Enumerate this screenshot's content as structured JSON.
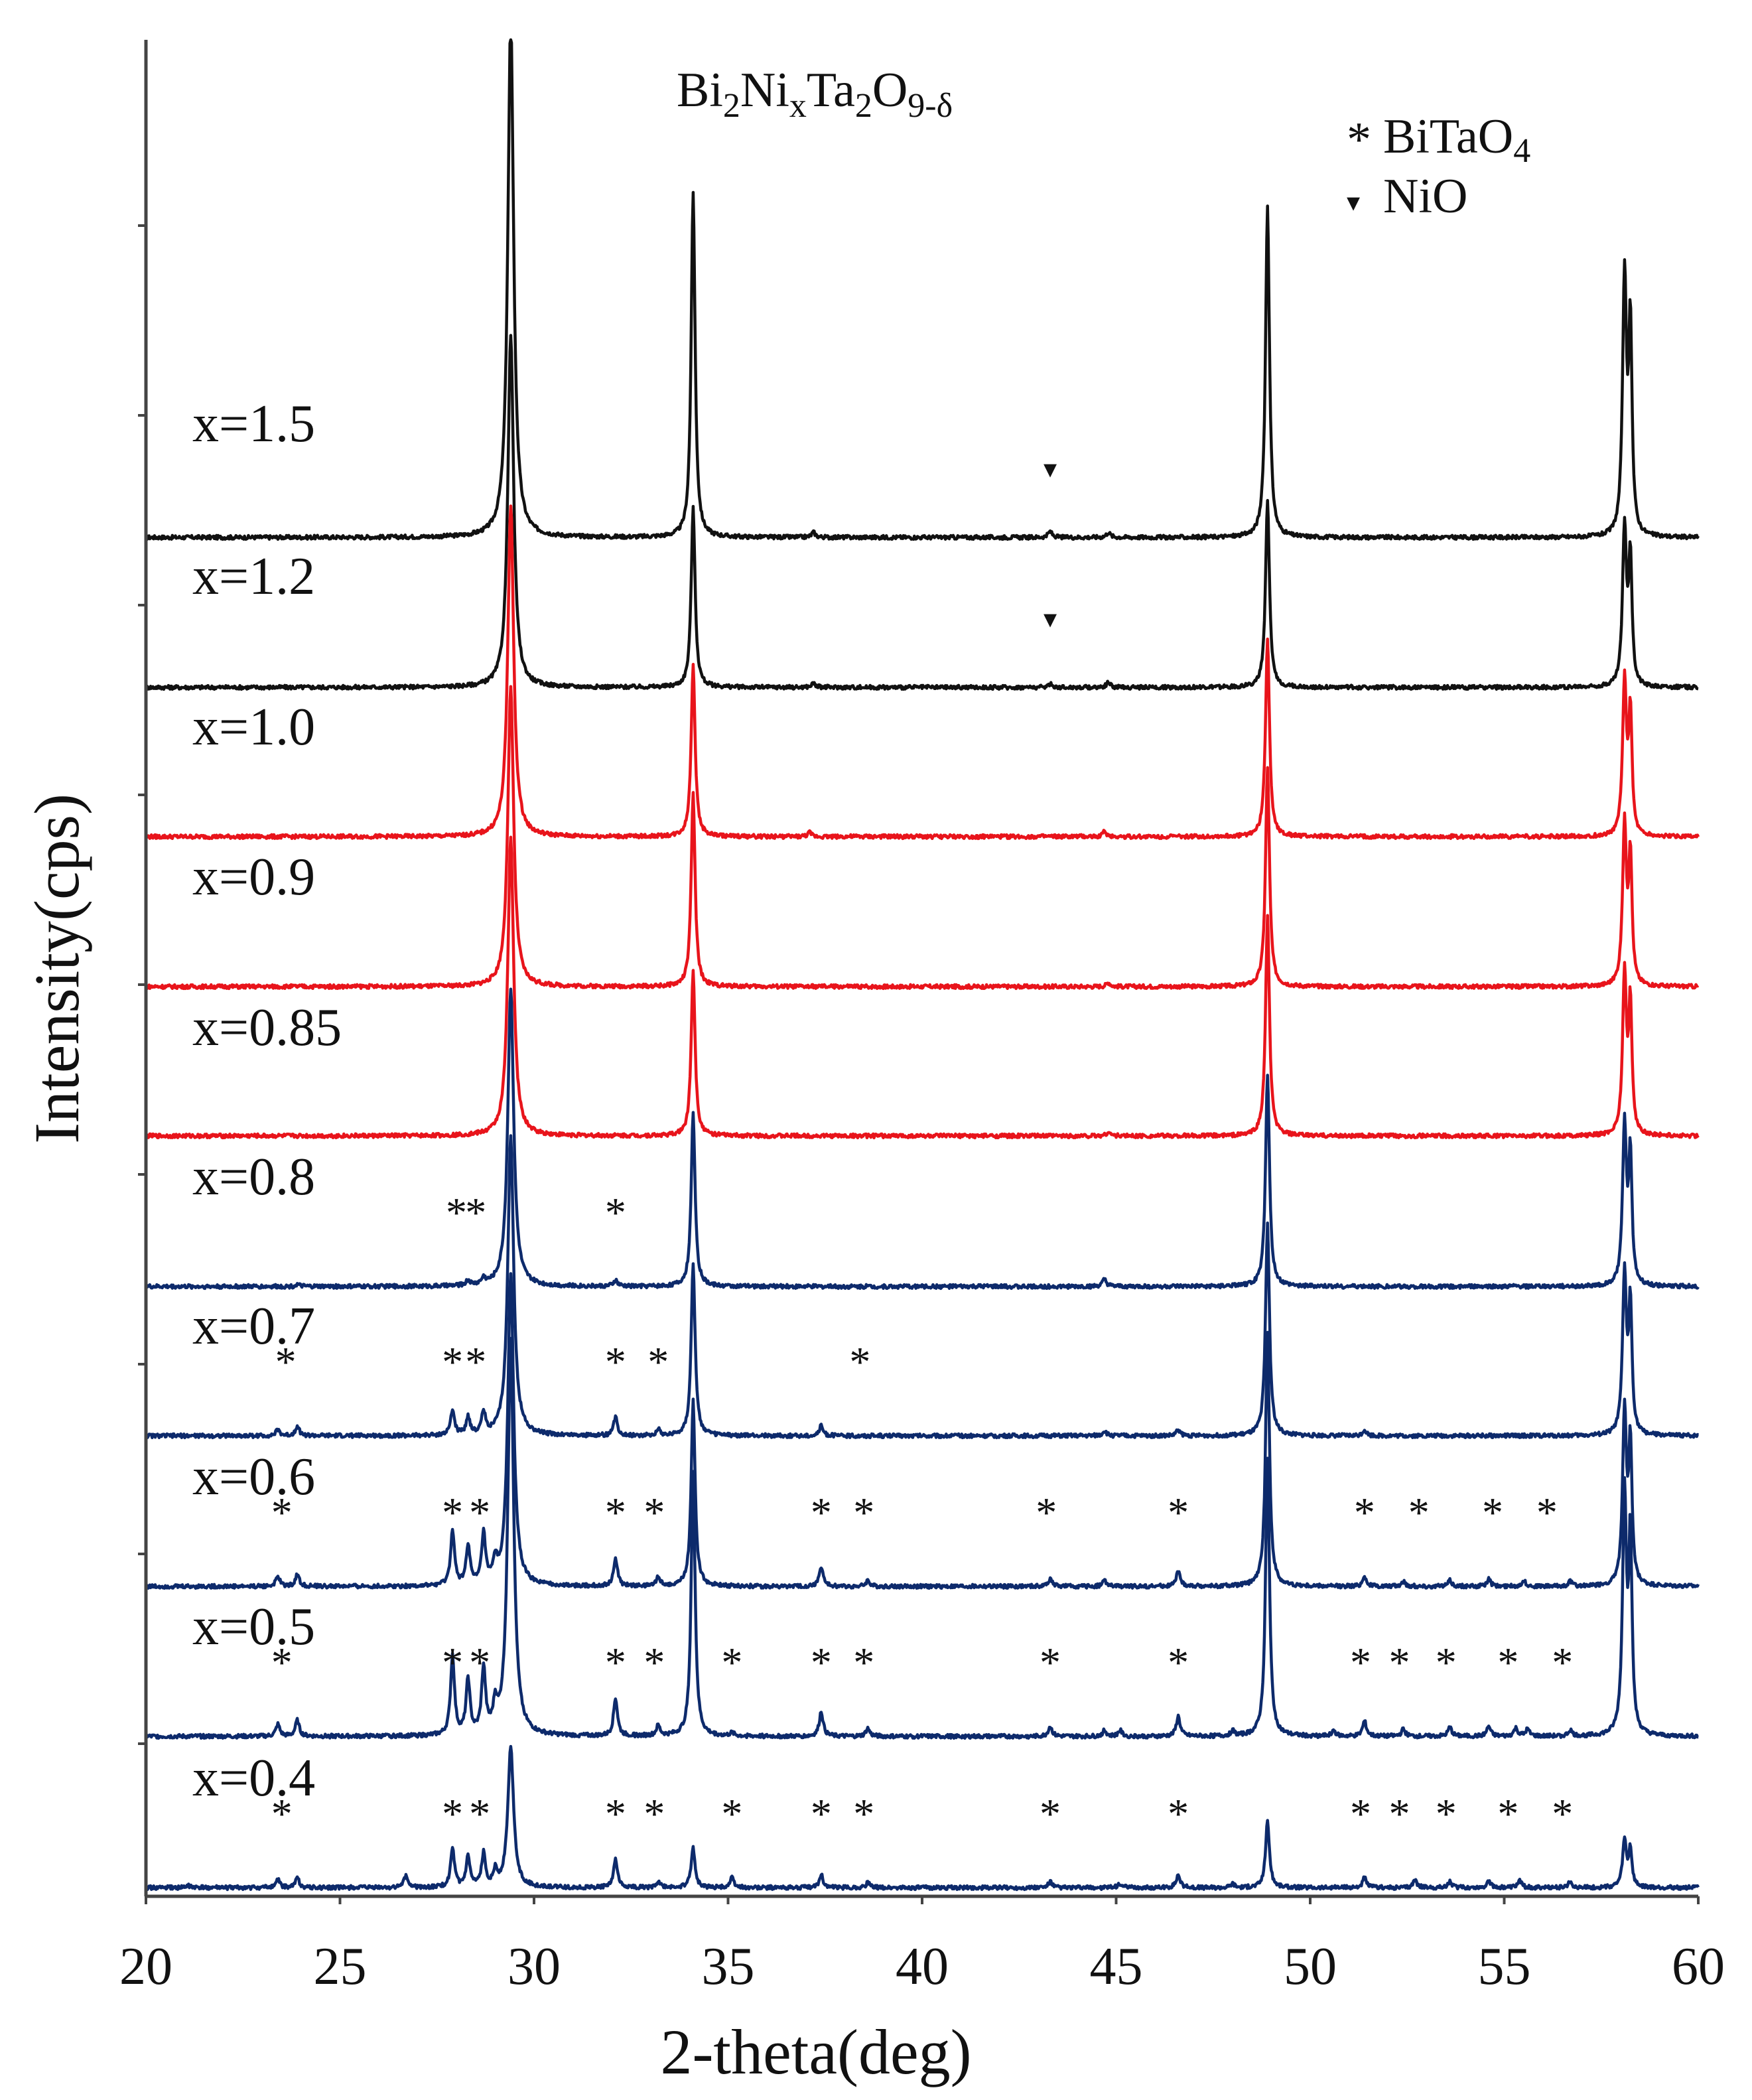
{
  "chart_data": {
    "type": "line",
    "title_parts": {
      "bi": "Bi",
      "bi_sub": "2",
      "ni": "Ni",
      "ni_sub": "x",
      "ta": "Ta",
      "ta_sub": "2",
      "o": "O",
      "o_sub": "9-δ"
    },
    "xlabel": "2-theta(deg)",
    "ylabel": "Intensity(cps)",
    "xlim": [
      20,
      60
    ],
    "x_ticks": [
      "20",
      "25",
      "30",
      "35",
      "40",
      "45",
      "50",
      "55",
      "60"
    ],
    "legend": [
      {
        "marker": "*",
        "label": "BiTaO",
        "sub": "4"
      },
      {
        "marker": "▾",
        "label": "NiO",
        "sub": ""
      }
    ],
    "colors": {
      "black": "#111111",
      "red": "#e8141b",
      "blue": "#0d2a6b",
      "axis": "#444444"
    },
    "series": [
      {
        "name": "x=1.5",
        "label": "x=1.5",
        "color": "#111111",
        "mid_peaks": [
          [
            37.2,
            0.05
          ],
          [
            43.3,
            0.06
          ],
          [
            44.8,
            0.05
          ]
        ],
        "markers": [
          {
            "type": "nio",
            "x": 43.3
          }
        ]
      },
      {
        "name": "x=1.2",
        "label": "x=1.2",
        "color": "#111111",
        "mid_peaks": [
          [
            37.2,
            0.04
          ],
          [
            43.3,
            0.035
          ],
          [
            44.8,
            0.05
          ]
        ],
        "markers": [
          {
            "type": "nio",
            "x": 43.3
          }
        ]
      },
      {
        "name": "x=1.0",
        "label": "x=1.0",
        "color": "#e8141b",
        "mid_peaks": [
          [
            37.1,
            0.04
          ],
          [
            44.7,
            0.05
          ]
        ],
        "markers": []
      },
      {
        "name": "x=0.9",
        "label": "x=0.9",
        "color": "#e8141b",
        "mid_peaks": [
          [
            44.8,
            0.04
          ]
        ],
        "markers": []
      },
      {
        "name": "x=0.85",
        "label": "x=0.85",
        "color": "#e8141b",
        "mid_peaks": [
          [
            44.8,
            0.04
          ]
        ],
        "markers": []
      },
      {
        "name": "x=0.8",
        "label": "x=0.8",
        "color": "#0d2a6b",
        "mid_peaks": [
          [
            23.9,
            0.02
          ],
          [
            28.3,
            0.05
          ],
          [
            28.7,
            0.06
          ],
          [
            32.1,
            0.06
          ],
          [
            44.7,
            0.07
          ]
        ],
        "markers": [
          {
            "type": "star",
            "x": 28.0
          },
          {
            "type": "star",
            "x": 28.5
          },
          {
            "type": "star",
            "x": 32.1
          }
        ]
      },
      {
        "name": "x=0.7",
        "label": "x=0.7",
        "color": "#0d2a6b",
        "mid_peaks": [
          [
            23.4,
            0.06
          ],
          [
            23.9,
            0.1
          ],
          [
            27.9,
            0.25
          ],
          [
            28.3,
            0.18
          ],
          [
            28.7,
            0.22
          ],
          [
            32.1,
            0.18
          ],
          [
            33.2,
            0.06
          ],
          [
            37.4,
            0.1
          ],
          [
            44.7,
            0.05
          ],
          [
            46.6,
            0.06
          ],
          [
            51.4,
            0.06
          ]
        ],
        "markers": [
          {
            "type": "star",
            "x": 23.6
          },
          {
            "type": "star",
            "x": 27.9
          },
          {
            "type": "star",
            "x": 28.5
          },
          {
            "type": "star",
            "x": 32.1
          },
          {
            "type": "star",
            "x": 33.2
          },
          {
            "type": "star",
            "x": 38.4
          }
        ]
      },
      {
        "name": "x=0.6",
        "label": "x=0.6",
        "color": "#0d2a6b",
        "mid_peaks": [
          [
            23.4,
            0.1
          ],
          [
            23.9,
            0.12
          ],
          [
            27.9,
            0.55
          ],
          [
            28.3,
            0.4
          ],
          [
            28.7,
            0.5
          ],
          [
            29.0,
            0.2
          ],
          [
            32.1,
            0.28
          ],
          [
            33.2,
            0.1
          ],
          [
            37.4,
            0.2
          ],
          [
            38.6,
            0.06
          ],
          [
            43.3,
            0.08
          ],
          [
            44.7,
            0.06
          ],
          [
            46.6,
            0.15
          ],
          [
            51.4,
            0.1
          ],
          [
            52.4,
            0.05
          ],
          [
            53.6,
            0.06
          ],
          [
            54.6,
            0.07
          ],
          [
            55.5,
            0.06
          ],
          [
            56.7,
            0.05
          ]
        ],
        "markers": [
          {
            "type": "star",
            "x": 23.5
          },
          {
            "type": "star",
            "x": 27.9
          },
          {
            "type": "star",
            "x": 28.6
          },
          {
            "type": "star",
            "x": 32.1
          },
          {
            "type": "star",
            "x": 33.1
          },
          {
            "type": "star",
            "x": 37.4
          },
          {
            "type": "star",
            "x": 38.5
          },
          {
            "type": "star",
            "x": 43.2
          },
          {
            "type": "star",
            "x": 46.6
          },
          {
            "type": "star",
            "x": 51.4
          },
          {
            "type": "star",
            "x": 52.8
          },
          {
            "type": "star",
            "x": 54.7
          },
          {
            "type": "star",
            "x": 56.1
          }
        ]
      },
      {
        "name": "x=0.5",
        "label": "x=0.5",
        "color": "#0d2a6b",
        "mid_peaks": [
          [
            23.4,
            0.12
          ],
          [
            23.9,
            0.16
          ],
          [
            27.9,
            0.8
          ],
          [
            28.3,
            0.55
          ],
          [
            28.7,
            0.65
          ],
          [
            29.0,
            0.25
          ],
          [
            32.1,
            0.38
          ],
          [
            33.2,
            0.1
          ],
          [
            35.1,
            0.03
          ],
          [
            37.4,
            0.25
          ],
          [
            38.6,
            0.08
          ],
          [
            43.3,
            0.1
          ],
          [
            44.7,
            0.06
          ],
          [
            45.1,
            0.06
          ],
          [
            46.6,
            0.2
          ],
          [
            48.0,
            0.05
          ],
          [
            50.6,
            0.06
          ],
          [
            51.4,
            0.15
          ],
          [
            52.4,
            0.07
          ],
          [
            53.6,
            0.09
          ],
          [
            54.6,
            0.1
          ],
          [
            55.3,
            0.08
          ],
          [
            55.6,
            0.07
          ],
          [
            56.7,
            0.06
          ]
        ],
        "markers": [
          {
            "type": "star",
            "x": 23.5
          },
          {
            "type": "star",
            "x": 27.9
          },
          {
            "type": "star",
            "x": 28.6
          },
          {
            "type": "star",
            "x": 32.1
          },
          {
            "type": "star",
            "x": 33.1
          },
          {
            "type": "star",
            "x": 35.1
          },
          {
            "type": "star",
            "x": 37.4
          },
          {
            "type": "star",
            "x": 38.5
          },
          {
            "type": "star",
            "x": 43.3
          },
          {
            "type": "star",
            "x": 46.6
          },
          {
            "type": "star",
            "x": 51.3
          },
          {
            "type": "star",
            "x": 52.3
          },
          {
            "type": "star",
            "x": 53.5
          },
          {
            "type": "star",
            "x": 55.1
          },
          {
            "type": "star",
            "x": 56.5
          }
        ]
      },
      {
        "name": "x=0.4",
        "label": "x=0.4",
        "color": "#0d2a6b",
        "mid_peaks": [
          [
            21.1,
            0.02
          ],
          [
            23.4,
            0.08
          ],
          [
            23.9,
            0.1
          ],
          [
            26.7,
            0.12
          ],
          [
            27.9,
            0.38
          ],
          [
            28.3,
            0.3
          ],
          [
            28.7,
            0.33
          ],
          [
            29.0,
            0.15
          ],
          [
            32.1,
            0.28
          ],
          [
            33.2,
            0.06
          ],
          [
            35.1,
            0.1
          ],
          [
            37.4,
            0.13
          ],
          [
            38.6,
            0.05
          ],
          [
            43.3,
            0.06
          ],
          [
            45.1,
            0.04
          ],
          [
            46.6,
            0.13
          ],
          [
            48.0,
            0.04
          ],
          [
            51.4,
            0.1
          ],
          [
            52.7,
            0.08
          ],
          [
            53.6,
            0.06
          ],
          [
            54.6,
            0.07
          ],
          [
            55.4,
            0.07
          ],
          [
            56.7,
            0.06
          ]
        ],
        "markers": [
          {
            "type": "star",
            "x": 23.5
          },
          {
            "type": "star",
            "x": 27.9
          },
          {
            "type": "star",
            "x": 28.6
          },
          {
            "type": "star",
            "x": 32.1
          },
          {
            "type": "star",
            "x": 33.1
          },
          {
            "type": "star",
            "x": 35.1
          },
          {
            "type": "star",
            "x": 37.4
          },
          {
            "type": "star",
            "x": 38.5
          },
          {
            "type": "star",
            "x": 43.3
          },
          {
            "type": "star",
            "x": 46.6
          },
          {
            "type": "star",
            "x": 51.3
          },
          {
            "type": "star",
            "x": 52.3
          },
          {
            "type": "star",
            "x": 53.5
          },
          {
            "type": "star",
            "x": 55.1
          },
          {
            "type": "star",
            "x": 56.5
          }
        ]
      }
    ]
  }
}
